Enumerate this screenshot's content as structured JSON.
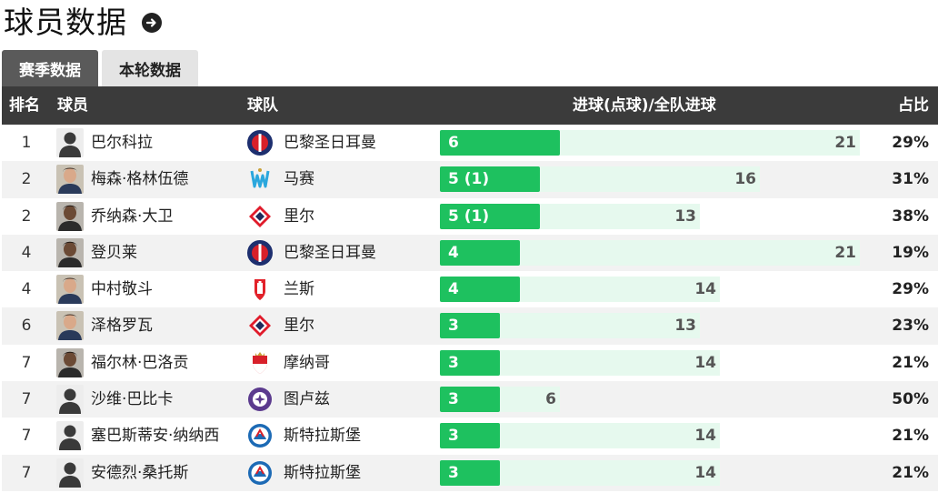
{
  "page": {
    "title": "球员数据"
  },
  "tabs": [
    {
      "label": "赛季数据",
      "active": true
    },
    {
      "label": "本轮数据",
      "active": false
    }
  ],
  "columns": {
    "rank": "排名",
    "player": "球员",
    "team": "球队",
    "goals": "进球(点球)/全队进球",
    "share": "占比"
  },
  "colors": {
    "goals_bar": "#1ec15f",
    "team_bar": "#e6f9ee",
    "header_bg": "#3b3b3b",
    "active_tab": "#5a5a5a"
  },
  "rows": [
    {
      "rank": "1",
      "player": "巴尔科拉",
      "avatar": "silhouette",
      "team": "巴黎圣日耳曼",
      "logo": "psg",
      "goals_label": "6",
      "goals": 6,
      "team_goals": 21,
      "share": "29%"
    },
    {
      "rank": "2",
      "player": "梅森·格林伍德",
      "avatar": "photo-light",
      "team": "马赛",
      "logo": "marseille",
      "goals_label": "5 (1)",
      "goals": 5,
      "team_goals": 16,
      "share": "31%"
    },
    {
      "rank": "2",
      "player": "乔纳森·大卫",
      "avatar": "photo-dark",
      "team": "里尔",
      "logo": "lille",
      "goals_label": "5 (1)",
      "goals": 5,
      "team_goals": 13,
      "share": "38%"
    },
    {
      "rank": "4",
      "player": "登贝莱",
      "avatar": "photo-dark",
      "team": "巴黎圣日耳曼",
      "logo": "psg",
      "goals_label": "4",
      "goals": 4,
      "team_goals": 21,
      "share": "19%"
    },
    {
      "rank": "4",
      "player": "中村敬斗",
      "avatar": "photo-light",
      "team": "兰斯",
      "logo": "reims",
      "goals_label": "4",
      "goals": 4,
      "team_goals": 14,
      "share": "29%"
    },
    {
      "rank": "6",
      "player": "泽格罗瓦",
      "avatar": "photo-light",
      "team": "里尔",
      "logo": "lille",
      "goals_label": "3",
      "goals": 3,
      "team_goals": 13,
      "share": "23%"
    },
    {
      "rank": "7",
      "player": "福尔林·巴洛贡",
      "avatar": "photo-dark",
      "team": "摩纳哥",
      "logo": "monaco",
      "goals_label": "3",
      "goals": 3,
      "team_goals": 14,
      "share": "21%"
    },
    {
      "rank": "7",
      "player": "沙维·巴比卡",
      "avatar": "silhouette",
      "team": "图卢兹",
      "logo": "toulouse",
      "goals_label": "3",
      "goals": 3,
      "team_goals": 6,
      "share": "50%"
    },
    {
      "rank": "7",
      "player": "塞巴斯蒂安·纳纳西",
      "avatar": "silhouette",
      "team": "斯特拉斯堡",
      "logo": "strasbourg",
      "goals_label": "3",
      "goals": 3,
      "team_goals": 14,
      "share": "21%"
    },
    {
      "rank": "7",
      "player": "安德烈·桑托斯",
      "avatar": "silhouette",
      "team": "斯特拉斯堡",
      "logo": "strasbourg",
      "goals_label": "3",
      "goals": 3,
      "team_goals": 14,
      "share": "21%"
    }
  ]
}
